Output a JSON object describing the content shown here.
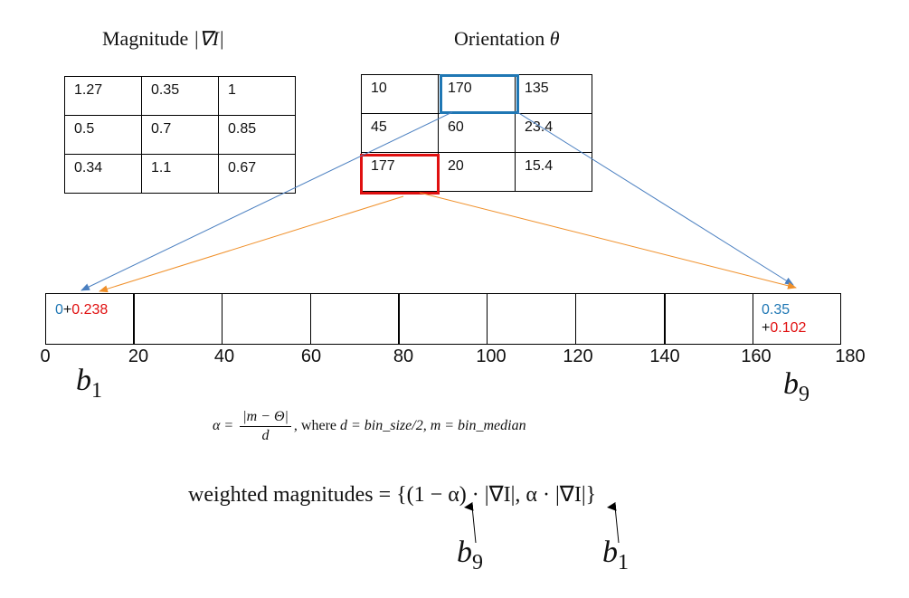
{
  "magnitude_title": {
    "text": "Magnitude ",
    "symbol": "|∇I|"
  },
  "orientation_title": {
    "text": "Orientation ",
    "symbol": "θ"
  },
  "magnitude_grid": [
    [
      "1.27",
      "0.35",
      "1"
    ],
    [
      "0.5",
      "0.7",
      "0.85"
    ],
    [
      "0.34",
      "1.1",
      "0.67"
    ]
  ],
  "orientation_grid": [
    [
      "10",
      "170",
      "135"
    ],
    [
      "45",
      "60",
      "23.4"
    ],
    [
      "177",
      "20",
      "15.4"
    ]
  ],
  "highlight_colors": {
    "blue": "#1f77b4",
    "red": "#e01010",
    "orange": "#f0902a"
  },
  "histogram": {
    "first_bin": {
      "a": "0",
      "plus": "+",
      "b": "0.238"
    },
    "last_bin": {
      "a": "0.35",
      "plus": "+",
      "b": "0.102"
    },
    "ticks": [
      "0",
      "20",
      "40",
      "60",
      "80",
      "100",
      "120",
      "140",
      "160",
      "180"
    ]
  },
  "bin_labels": {
    "left": {
      "base": "b",
      "sub": "1"
    },
    "right": {
      "base": "b",
      "sub": "9"
    }
  },
  "alpha_formula": {
    "lhs": "α =",
    "num": "|m − Θ|",
    "den": "d",
    "rest_plain": ", where ",
    "rest_math": "d = bin_size/2, m = bin_median"
  },
  "weighted_formula": {
    "prefix": "weighted magnitudes = ",
    "expr": "{(1 − α) · |∇I|, α · |∇I|}"
  },
  "pointer_labels": {
    "first": {
      "base": "b",
      "sub": "9"
    },
    "second": {
      "base": "b",
      "sub": "1"
    }
  }
}
